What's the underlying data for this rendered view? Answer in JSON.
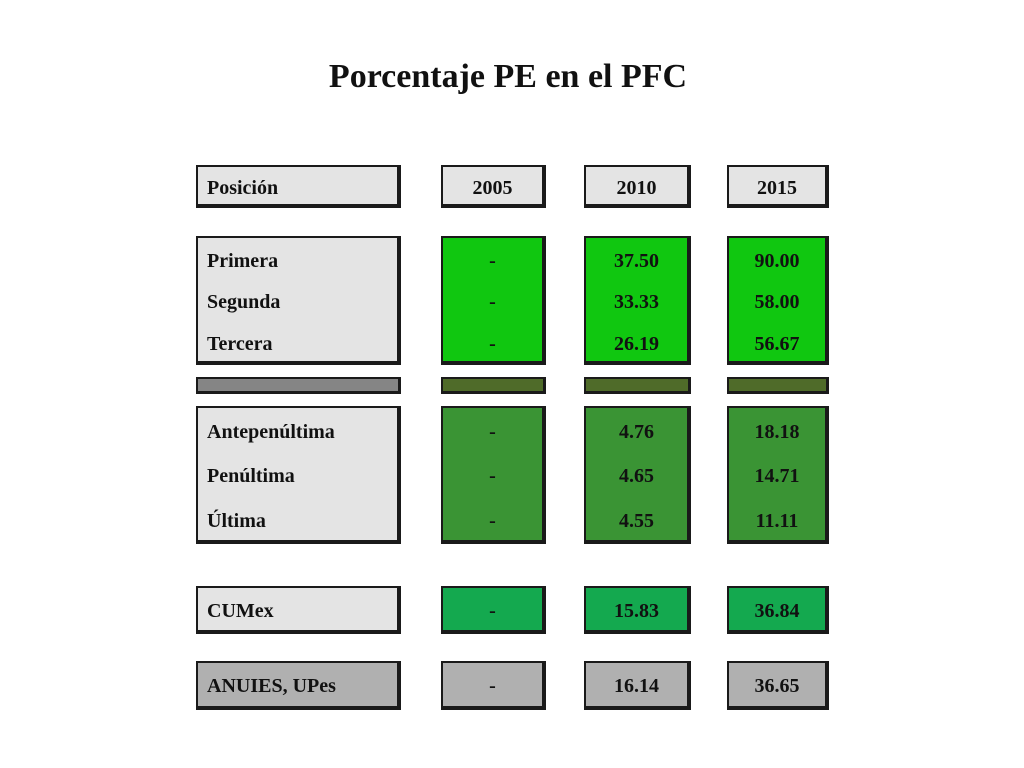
{
  "title": "Porcentaje PE en el PFC",
  "header": {
    "position": "Posición",
    "years": [
      "2005",
      "2010",
      "2015"
    ]
  },
  "top_group": {
    "labels": [
      "Primera",
      "Segunda",
      "Tercera"
    ],
    "values_2005": [
      "-",
      "-",
      "-"
    ],
    "values_2010": [
      "37.50",
      "33.33",
      "26.19"
    ],
    "values_2015": [
      "90.00",
      "58.00",
      "56.67"
    ]
  },
  "bottom_group": {
    "labels": [
      "Antepenúltima",
      "Penúltima",
      "Última"
    ],
    "values_2005": [
      "-",
      "-",
      "-"
    ],
    "values_2010": [
      "4.76",
      "4.65",
      "4.55"
    ],
    "values_2015": [
      "18.18",
      "14.71",
      "11.11"
    ]
  },
  "cumex": {
    "label": "CUMex",
    "v2005": "-",
    "v2010": "15.83",
    "v2015": "36.84"
  },
  "anuies": {
    "label": "ANUIES, UPes",
    "v2005": "-",
    "v2010": "16.14",
    "v2015": "36.65"
  },
  "colors": {
    "label_fill": "#e4e4e4",
    "top_fill": "#10c710",
    "bottom_fill": "#3a9434",
    "cumex_fill": "#14a94f",
    "anuies_fill": "#b0b0b0",
    "separator_gray": "#858585",
    "separator_olive": "#4f6b29"
  }
}
